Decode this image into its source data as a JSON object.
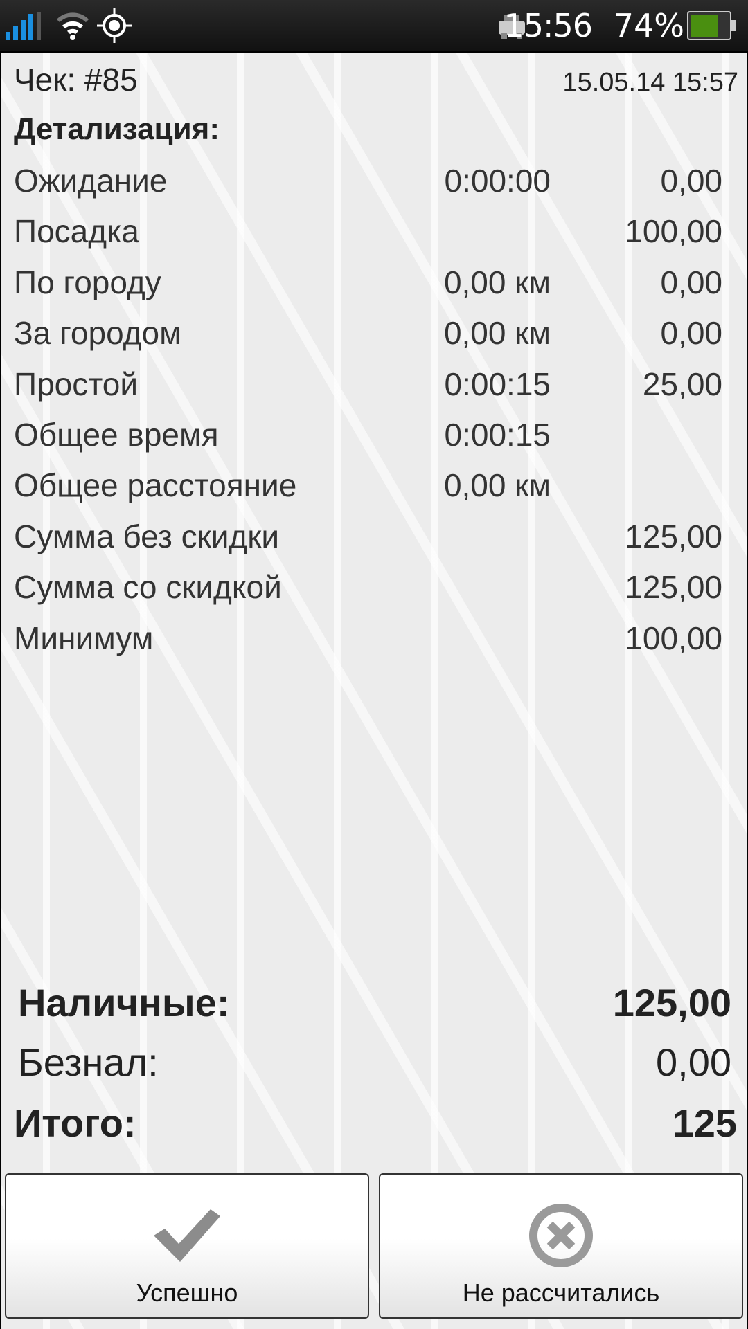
{
  "status_bar": {
    "time": "15:56",
    "battery": "74%",
    "battery_level": 74,
    "icons": [
      "signal-icon",
      "wifi-icon",
      "gps-icon",
      "taxi-icon",
      "battery-icon"
    ]
  },
  "receipt": {
    "title": "Чек: #85",
    "datetime": "15.05.14 15:57",
    "section": "Детализация:",
    "rows": [
      {
        "label": "Ожидание",
        "mid": "0:00:00",
        "value": "0,00"
      },
      {
        "label": "Посадка",
        "mid": "",
        "value": "100,00"
      },
      {
        "label": "По городу",
        "mid": "0,00 км",
        "value": "0,00"
      },
      {
        "label": "За городом",
        "mid": "0,00 км",
        "value": "0,00"
      },
      {
        "label": "Простой",
        "mid": "0:00:15",
        "value": "25,00"
      },
      {
        "label": "Общее время",
        "mid": "0:00:15",
        "value": ""
      },
      {
        "label": "Общее расстояние",
        "mid": "0,00 км",
        "value": ""
      },
      {
        "label": "Сумма без скидки",
        "mid": "",
        "value": "125,00"
      },
      {
        "label": "Сумма со скидкой",
        "mid": "",
        "value": "125,00"
      },
      {
        "label": "Минимум",
        "mid": "",
        "value": "100,00"
      }
    ]
  },
  "totals": {
    "cash_label": "Наличные:",
    "cash": "125,00",
    "card_label": "Безнал:",
    "card": "0,00",
    "total_label": "Итого:",
    "total": "125"
  },
  "buttons": {
    "success": "Успешно",
    "not_paid": "Не рассчитались"
  }
}
